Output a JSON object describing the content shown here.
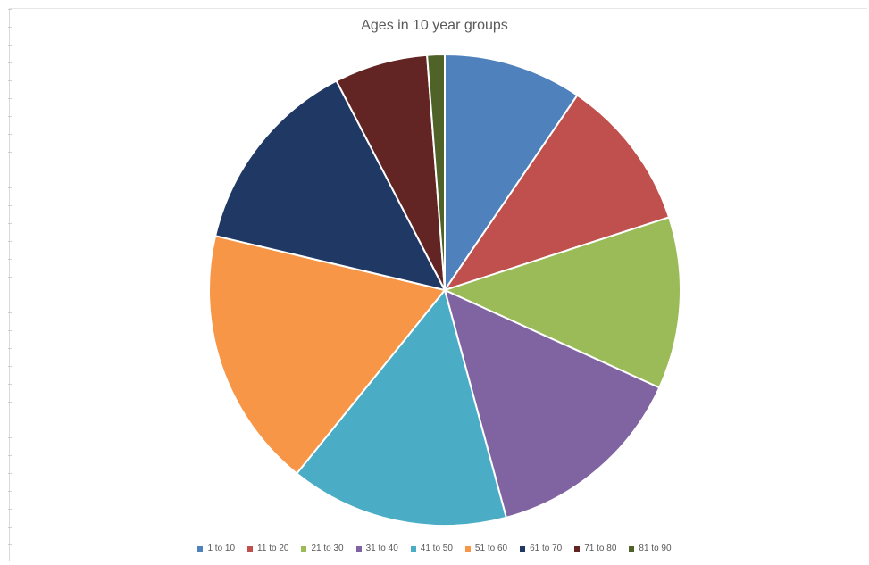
{
  "chart_data": {
    "type": "pie",
    "title": "Ages in 10 year groups",
    "categories": [
      "1 to 10",
      "11 to 20",
      "21 to 30",
      "31 to 40",
      "41 to 50",
      "51 to 60",
      "61 to 70",
      "71 to 80",
      "81 to 90"
    ],
    "values": [
      9.5,
      10.5,
      11.8,
      14.0,
      15.0,
      17.9,
      13.7,
      6.4,
      1.2
    ],
    "colors": [
      "#4F81BD",
      "#C0504D",
      "#9BBB59",
      "#8064A2",
      "#4BACC6",
      "#F79646",
      "#1F3864",
      "#632523",
      "#4F6228"
    ],
    "legend_position": "bottom",
    "start_angle": "12 o'clock",
    "direction": "clockwise"
  }
}
